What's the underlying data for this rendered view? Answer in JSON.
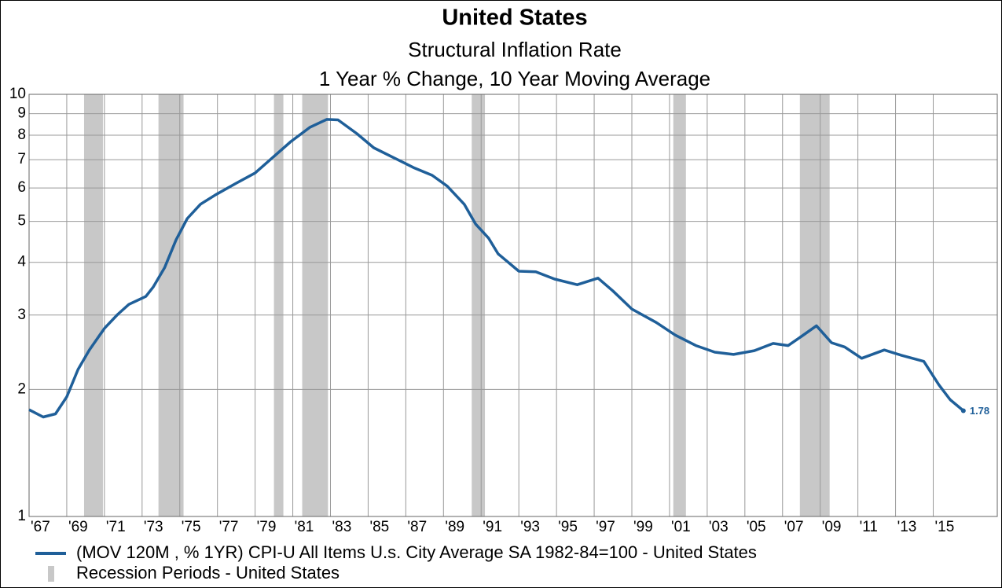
{
  "chart_data": {
    "type": "line",
    "title": "United States",
    "subtitle": "Structural Inflation Rate",
    "subtitle2": "1 Year % Change, 10 Year Moving Average",
    "log_scale": true,
    "grid": true,
    "ylim": [
      1,
      10
    ],
    "yticks": [
      1,
      2,
      3,
      4,
      5,
      6,
      7,
      8,
      9,
      10
    ],
    "xlim": [
      1967,
      2018.4
    ],
    "xticks": [
      {
        "value": 1967,
        "label": "'67"
      },
      {
        "value": 1969,
        "label": "'69"
      },
      {
        "value": 1971,
        "label": "'71"
      },
      {
        "value": 1973,
        "label": "'73"
      },
      {
        "value": 1975,
        "label": "'75"
      },
      {
        "value": 1977,
        "label": "'77"
      },
      {
        "value": 1979,
        "label": "'79"
      },
      {
        "value": 1981,
        "label": "'81"
      },
      {
        "value": 1983,
        "label": "'83"
      },
      {
        "value": 1985,
        "label": "'85"
      },
      {
        "value": 1987,
        "label": "'87"
      },
      {
        "value": 1989,
        "label": "'89"
      },
      {
        "value": 1991,
        "label": "'91"
      },
      {
        "value": 1993,
        "label": "'93"
      },
      {
        "value": 1995,
        "label": "'95"
      },
      {
        "value": 1997,
        "label": "'97"
      },
      {
        "value": 1999,
        "label": "'99"
      },
      {
        "value": 2001,
        "label": "'01"
      },
      {
        "value": 2003,
        "label": "'03"
      },
      {
        "value": 2005,
        "label": "'05"
      },
      {
        "value": 2007,
        "label": "'07"
      },
      {
        "value": 2009,
        "label": "'09"
      },
      {
        "value": 2011,
        "label": "'11"
      },
      {
        "value": 2013,
        "label": "'13"
      },
      {
        "value": 2015,
        "label": "'15"
      }
    ],
    "recessions": {
      "name": "Recession Periods - United States",
      "color": "#c8c8c8",
      "periods": [
        [
          1969.92,
          1970.92
        ],
        [
          1973.87,
          1975.2
        ],
        [
          1980.0,
          1980.5
        ],
        [
          1981.5,
          1982.87
        ],
        [
          1990.5,
          1991.2
        ],
        [
          2001.2,
          2001.87
        ],
        [
          2007.92,
          2009.5
        ]
      ]
    },
    "series": [
      {
        "name": "(MOV 120M , % 1YR) CPI-U All Items U.s. City Average SA 1982-84=100 - United States",
        "color": "#1f5f99",
        "x": [
          1967.0,
          1967.75,
          1968.4,
          1969.0,
          1969.6,
          1970.2,
          1971.0,
          1971.7,
          1972.3,
          1973.2,
          1973.6,
          1974.2,
          1974.8,
          1975.4,
          1976.1,
          1976.9,
          1978.0,
          1979.0,
          1979.8,
          1980.9,
          1981.9,
          1982.8,
          1983.4,
          1984.4,
          1985.3,
          1986.3,
          1987.4,
          1988.4,
          1989.2,
          1990.1,
          1990.7,
          1991.4,
          1991.9,
          1993.0,
          1993.9,
          1994.9,
          1996.1,
          1997.2,
          1998.0,
          1999.0,
          2000.3,
          2001.3,
          2002.4,
          2003.4,
          2004.4,
          2005.5,
          2006.5,
          2007.3,
          2008.0,
          2008.8,
          2009.6,
          2010.3,
          2011.2,
          2012.4,
          2013.3,
          2014.5,
          2015.3,
          2015.9,
          2016.6
        ],
        "values": [
          1.79,
          1.72,
          1.75,
          1.92,
          2.23,
          2.48,
          2.79,
          3.01,
          3.18,
          3.32,
          3.5,
          3.89,
          4.52,
          5.08,
          5.49,
          5.78,
          6.16,
          6.51,
          7.0,
          7.73,
          8.35,
          8.72,
          8.7,
          8.07,
          7.47,
          7.1,
          6.71,
          6.43,
          6.06,
          5.49,
          4.93,
          4.56,
          4.19,
          3.81,
          3.8,
          3.65,
          3.54,
          3.67,
          3.42,
          3.1,
          2.88,
          2.69,
          2.54,
          2.45,
          2.42,
          2.47,
          2.57,
          2.54,
          2.67,
          2.83,
          2.58,
          2.52,
          2.37,
          2.48,
          2.41,
          2.33,
          2.05,
          1.89,
          1.78
        ],
        "last_value_label": 1.78
      }
    ]
  }
}
